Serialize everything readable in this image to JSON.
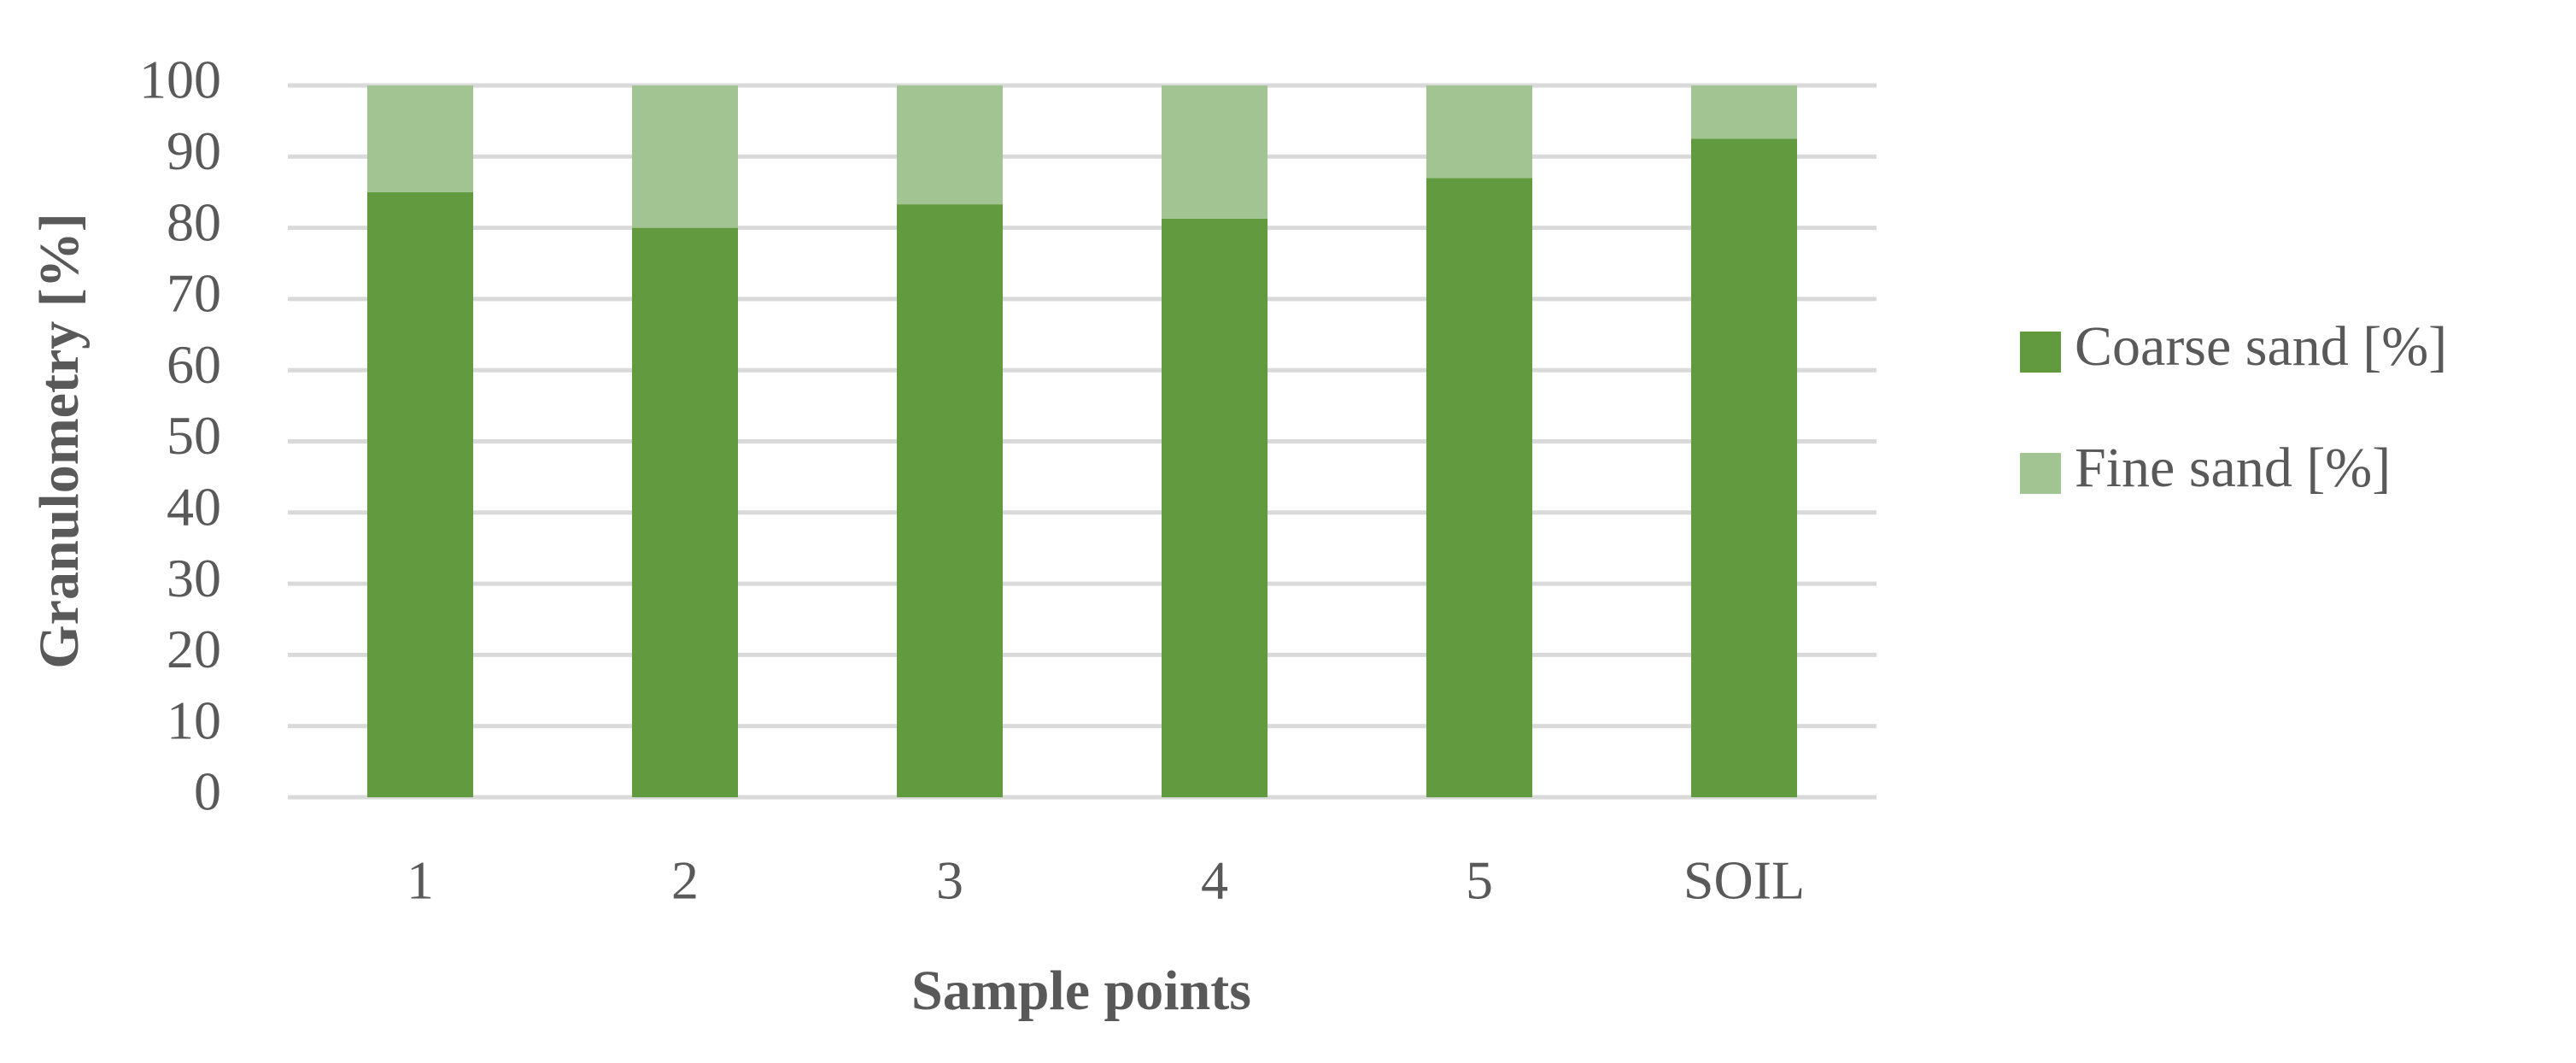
{
  "chart_data": {
    "type": "stacked_bar",
    "x_label": "Sample points",
    "y_label": "Granulometry [%]",
    "categories": [
      "1",
      "2",
      "3",
      "4",
      "5",
      "SOIL"
    ],
    "series": [
      {
        "name": "Coarse sand [%]",
        "color": "#619a3f",
        "values": [
          85,
          80,
          83.3,
          81.3,
          87,
          92.5
        ]
      },
      {
        "name": "Fine sand [%]",
        "color": "#a2c493",
        "values": [
          15,
          20,
          16.7,
          18.7,
          13,
          7.5
        ]
      }
    ],
    "ylim": [
      0,
      100
    ],
    "yticks": [
      0,
      10,
      20,
      30,
      40,
      50,
      60,
      70,
      80,
      90,
      100
    ],
    "grid": true,
    "legend": "right"
  }
}
